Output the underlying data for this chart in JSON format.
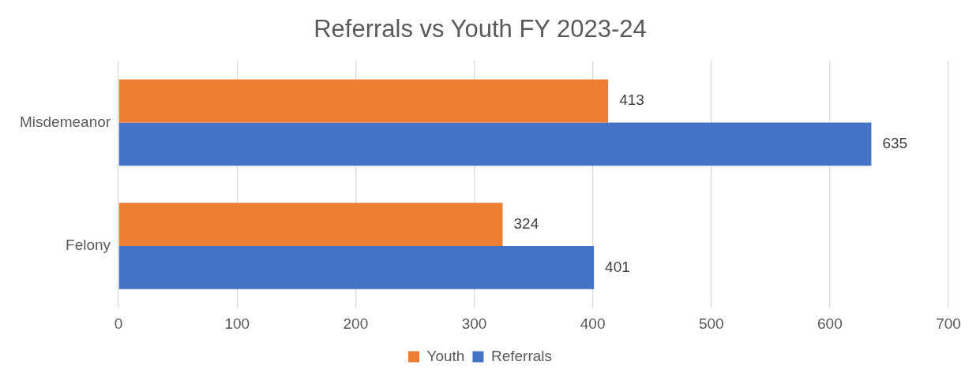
{
  "chart_data": {
    "type": "bar",
    "orientation": "horizontal",
    "title": "Referrals vs Youth FY 2023-24",
    "categories": [
      "Misdemeanor",
      "Felony"
    ],
    "series": [
      {
        "name": "Youth",
        "color": "#ed7d31",
        "values": [
          413,
          324
        ]
      },
      {
        "name": "Referrals",
        "color": "#4472c4",
        "values": [
          635,
          401
        ]
      }
    ],
    "xlim": [
      0,
      700
    ],
    "xticks": [
      0,
      100,
      200,
      300,
      400,
      500,
      600,
      700
    ],
    "grid": "x",
    "legend": "bottom",
    "data_labels": true
  }
}
